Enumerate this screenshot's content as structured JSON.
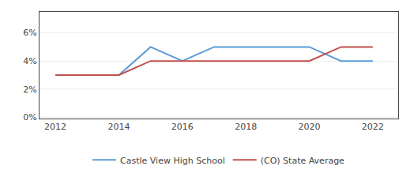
{
  "chart_data": {
    "type": "line",
    "x": [
      2012,
      2013,
      2014,
      2015,
      2016,
      2017,
      2018,
      2019,
      2020,
      2021,
      2022
    ],
    "series": [
      {
        "name": "Castle View High School",
        "color": "#5b9bd5",
        "values": [
          null,
          0.03,
          0.03,
          0.05,
          0.04,
          0.05,
          0.05,
          0.05,
          0.05,
          0.04,
          0.04
        ]
      },
      {
        "name": "(CO) State Average",
        "color": "#c0504d",
        "values": [
          0.03,
          0.03,
          0.03,
          0.04,
          0.04,
          0.04,
          0.04,
          0.04,
          0.04,
          0.05,
          0.05
        ]
      }
    ],
    "xlim": [
      2011.5,
      2022.8
    ],
    "xticks": [
      2012,
      2014,
      2016,
      2018,
      2020,
      2022
    ],
    "ylim": [
      -0.001,
      0.075
    ],
    "yticks": [
      {
        "value": 0.0,
        "label": "0%"
      },
      {
        "value": 0.02,
        "label": "2%"
      },
      {
        "value": 0.04,
        "label": "4%"
      },
      {
        "value": 0.06,
        "label": "6%"
      }
    ],
    "grid": true,
    "legend": "bottom"
  }
}
